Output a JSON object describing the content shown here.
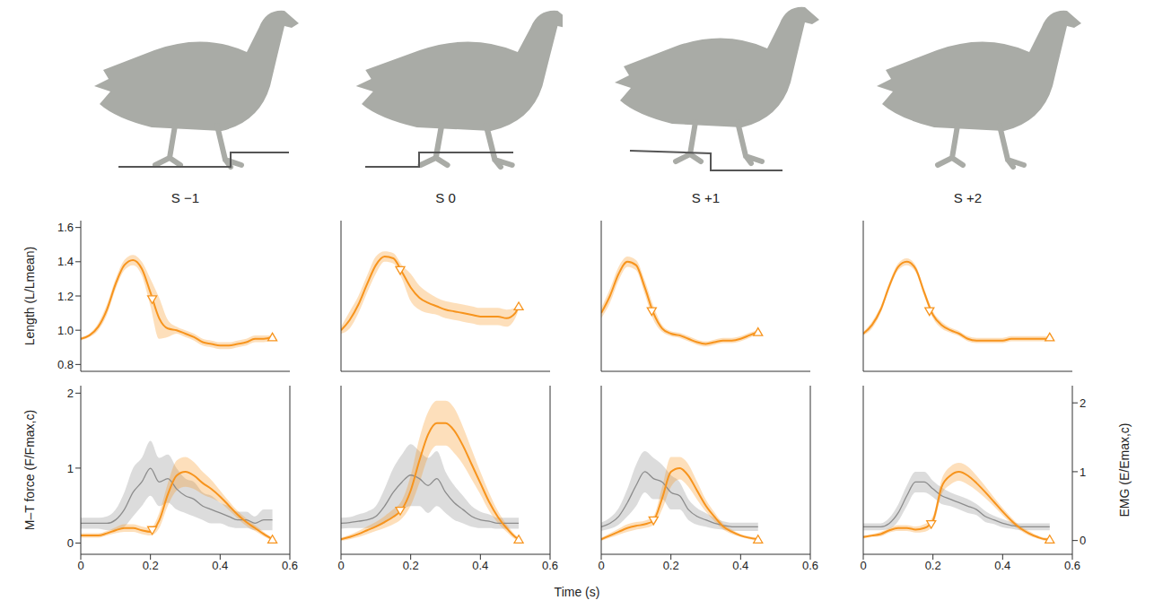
{
  "chart_data": [
    {
      "type": "line",
      "title": "S −1",
      "ylabel": "Length (L/Lmean)",
      "xlim": [
        0,
        0.6
      ],
      "ylim": [
        0.76,
        1.64
      ],
      "yticks": [
        0.8,
        {
          "value": 1,
          "label": "1.0"
        },
        1.2,
        1.4,
        1.6
      ],
      "x": [
        0,
        0.025,
        0.05,
        0.075,
        0.1,
        0.125,
        0.15,
        0.175,
        0.2,
        0.225,
        0.25,
        0.275,
        0.3,
        0.325,
        0.35,
        0.375,
        0.4,
        0.425,
        0.45,
        0.475,
        0.5,
        0.525,
        0.55
      ],
      "series": [
        {
          "type": "line",
          "color": "#f7941d",
          "values": [
            0.95,
            0.97,
            1.02,
            1.12,
            1.27,
            1.38,
            1.41,
            1.36,
            1.22,
            1.07,
            1.01,
            1.0,
            0.98,
            0.96,
            0.93,
            0.92,
            0.91,
            0.91,
            0.92,
            0.93,
            0.95,
            0.95,
            0.96
          ],
          "error": [
            0.01,
            0.01,
            0.02,
            0.03,
            0.03,
            0.03,
            0.03,
            0.04,
            0.08,
            0.12,
            0.05,
            0.02,
            0.02,
            0.02,
            0.02,
            0.02,
            0.02,
            0.02,
            0.02,
            0.02,
            0.02,
            0.02,
            0.01
          ]
        },
        {
          "type": "scatter",
          "marker": "triangle-down",
          "color": "#f7941d",
          "x": [
            0.205
          ],
          "values": [
            1.18
          ]
        },
        {
          "type": "scatter",
          "marker": "triangle-up",
          "color": "#f7941d",
          "x": [
            0.55
          ],
          "values": [
            0.96
          ]
        }
      ]
    },
    {
      "type": "line",
      "title": "S 0",
      "xlim": [
        0,
        0.6
      ],
      "ylim": [
        0.76,
        1.64
      ],
      "x": [
        0,
        0.025,
        0.05,
        0.075,
        0.1,
        0.125,
        0.15,
        0.175,
        0.2,
        0.225,
        0.25,
        0.275,
        0.3,
        0.325,
        0.35,
        0.375,
        0.4,
        0.425,
        0.45,
        0.475,
        0.5,
        0.51
      ],
      "series": [
        {
          "type": "line",
          "color": "#f7941d",
          "values": [
            1.0,
            1.06,
            1.15,
            1.27,
            1.38,
            1.43,
            1.42,
            1.34,
            1.25,
            1.19,
            1.16,
            1.14,
            1.12,
            1.11,
            1.1,
            1.09,
            1.08,
            1.08,
            1.08,
            1.07,
            1.1,
            1.14
          ],
          "error": [
            0.02,
            0.05,
            0.05,
            0.05,
            0.05,
            0.03,
            0.03,
            0.04,
            0.08,
            0.07,
            0.06,
            0.05,
            0.05,
            0.05,
            0.05,
            0.05,
            0.05,
            0.05,
            0.05,
            0.05,
            0.03,
            0.02
          ]
        },
        {
          "type": "scatter",
          "marker": "triangle-down",
          "color": "#f7941d",
          "x": [
            0.17
          ],
          "values": [
            1.35
          ]
        },
        {
          "type": "scatter",
          "marker": "triangle-up",
          "color": "#f7941d",
          "x": [
            0.51
          ],
          "values": [
            1.14
          ]
        }
      ]
    },
    {
      "type": "line",
      "title": "S +1",
      "xlim": [
        0,
        0.6
      ],
      "ylim": [
        0.76,
        1.64
      ],
      "x": [
        0,
        0.025,
        0.05,
        0.075,
        0.1,
        0.125,
        0.15,
        0.175,
        0.2,
        0.225,
        0.25,
        0.275,
        0.3,
        0.325,
        0.35,
        0.375,
        0.4,
        0.425,
        0.45
      ],
      "series": [
        {
          "type": "line",
          "color": "#f7941d",
          "values": [
            1.1,
            1.2,
            1.33,
            1.4,
            1.38,
            1.25,
            1.1,
            1.01,
            0.98,
            0.97,
            0.95,
            0.93,
            0.92,
            0.93,
            0.94,
            0.94,
            0.95,
            0.97,
            0.99
          ],
          "error": [
            0.03,
            0.04,
            0.04,
            0.03,
            0.03,
            0.04,
            0.04,
            0.02,
            0.015,
            0.015,
            0.015,
            0.015,
            0.015,
            0.015,
            0.015,
            0.015,
            0.015,
            0.015,
            0.01
          ]
        },
        {
          "type": "scatter",
          "marker": "triangle-down",
          "color": "#f7941d",
          "x": [
            0.145
          ],
          "values": [
            1.11
          ]
        },
        {
          "type": "scatter",
          "marker": "triangle-up",
          "color": "#f7941d",
          "x": [
            0.45
          ],
          "values": [
            0.99
          ]
        }
      ]
    },
    {
      "type": "line",
      "title": "S +2",
      "xlim": [
        0,
        0.6
      ],
      "ylim": [
        0.76,
        1.64
      ],
      "x": [
        0,
        0.025,
        0.05,
        0.075,
        0.1,
        0.125,
        0.15,
        0.175,
        0.2,
        0.225,
        0.25,
        0.275,
        0.3,
        0.325,
        0.35,
        0.375,
        0.4,
        0.425,
        0.45,
        0.475,
        0.5,
        0.525,
        0.535
      ],
      "series": [
        {
          "type": "line",
          "color": "#f7941d",
          "values": [
            0.98,
            1.03,
            1.12,
            1.26,
            1.37,
            1.4,
            1.36,
            1.22,
            1.09,
            1.03,
            1.0,
            0.98,
            0.95,
            0.94,
            0.94,
            0.94,
            0.94,
            0.95,
            0.95,
            0.95,
            0.95,
            0.95,
            0.96
          ],
          "error": [
            0.01,
            0.02,
            0.02,
            0.02,
            0.02,
            0.02,
            0.02,
            0.02,
            0.02,
            0.02,
            0.015,
            0.015,
            0.015,
            0.015,
            0.015,
            0.015,
            0.015,
            0.015,
            0.015,
            0.015,
            0.015,
            0.015,
            0.01
          ]
        },
        {
          "type": "scatter",
          "marker": "triangle-down",
          "color": "#f7941d",
          "x": [
            0.19
          ],
          "values": [
            1.11
          ]
        },
        {
          "type": "scatter",
          "marker": "triangle-up",
          "color": "#f7941d",
          "x": [
            0.535
          ],
          "values": [
            0.96
          ]
        }
      ]
    },
    {
      "type": "line",
      "ylabel": "M–T force (F/Fmax,c)",
      "xlim": [
        0,
        0.6
      ],
      "xticks": [
        0,
        0.2,
        0.4,
        0.6
      ],
      "ylim": [
        -0.15,
        2.1
      ],
      "yticks": [
        0,
        1,
        2
      ],
      "y2lim": [
        -0.2,
        2.25
      ],
      "x": [
        0,
        0.025,
        0.05,
        0.075,
        0.1,
        0.125,
        0.15,
        0.175,
        0.2,
        0.225,
        0.25,
        0.275,
        0.3,
        0.325,
        0.35,
        0.375,
        0.4,
        0.425,
        0.45,
        0.475,
        0.5,
        0.525,
        0.55
      ],
      "series": [
        {
          "type": "line",
          "axis": "y2",
          "color": "#8c8c8c",
          "values": [
            0.25,
            0.25,
            0.25,
            0.25,
            0.3,
            0.45,
            0.7,
            0.85,
            1.05,
            0.85,
            0.9,
            0.75,
            0.65,
            0.6,
            0.5,
            0.45,
            0.4,
            0.35,
            0.3,
            0.3,
            0.25,
            0.3,
            0.3
          ],
          "error": [
            0.08,
            0.08,
            0.08,
            0.1,
            0.15,
            0.25,
            0.35,
            0.35,
            0.4,
            0.35,
            0.35,
            0.3,
            0.25,
            0.25,
            0.2,
            0.2,
            0.15,
            0.15,
            0.12,
            0.12,
            0.1,
            0.15,
            0.15
          ]
        },
        {
          "type": "line",
          "color": "#f7941d",
          "values": [
            0.1,
            0.1,
            0.1,
            0.13,
            0.17,
            0.2,
            0.2,
            0.17,
            0.15,
            0.3,
            0.65,
            0.9,
            0.95,
            0.9,
            0.8,
            0.72,
            0.62,
            0.5,
            0.38,
            0.28,
            0.2,
            0.12,
            0.05
          ],
          "error": [
            0.03,
            0.03,
            0.03,
            0.03,
            0.04,
            0.05,
            0.05,
            0.05,
            0.05,
            0.1,
            0.15,
            0.2,
            0.2,
            0.18,
            0.15,
            0.12,
            0.08,
            0.06,
            0.05,
            0.05,
            0.04,
            0.03,
            0.02
          ]
        },
        {
          "type": "scatter",
          "marker": "triangle-down",
          "color": "#f7941d",
          "x": [
            0.205
          ],
          "values": [
            0.17
          ]
        },
        {
          "type": "scatter",
          "marker": "triangle-up",
          "color": "#f7941d",
          "x": [
            0.55
          ],
          "values": [
            0.05
          ]
        }
      ]
    },
    {
      "type": "line",
      "xlim": [
        0,
        0.6
      ],
      "xticks": [
        0,
        0.2,
        0.4,
        0.6
      ],
      "ylim": [
        -0.15,
        2.1
      ],
      "y2lim": [
        -0.2,
        2.25
      ],
      "x": [
        0,
        0.025,
        0.05,
        0.075,
        0.1,
        0.125,
        0.15,
        0.175,
        0.2,
        0.225,
        0.25,
        0.275,
        0.3,
        0.325,
        0.35,
        0.375,
        0.4,
        0.425,
        0.45,
        0.475,
        0.5,
        0.51
      ],
      "series": [
        {
          "type": "line",
          "axis": "y2",
          "color": "#8c8c8c",
          "values": [
            0.25,
            0.26,
            0.28,
            0.3,
            0.35,
            0.5,
            0.7,
            0.85,
            0.95,
            0.9,
            0.8,
            0.9,
            0.7,
            0.55,
            0.45,
            0.35,
            0.3,
            0.28,
            0.25,
            0.25,
            0.25,
            0.25
          ],
          "error": [
            0.08,
            0.08,
            0.1,
            0.12,
            0.15,
            0.25,
            0.35,
            0.4,
            0.45,
            0.4,
            0.4,
            0.4,
            0.3,
            0.25,
            0.2,
            0.15,
            0.12,
            0.1,
            0.08,
            0.08,
            0.08,
            0.08
          ]
        },
        {
          "type": "line",
          "color": "#f7941d",
          "values": [
            0.05,
            0.08,
            0.12,
            0.17,
            0.22,
            0.28,
            0.35,
            0.45,
            0.7,
            1.1,
            1.45,
            1.6,
            1.6,
            1.5,
            1.3,
            1.05,
            0.8,
            0.55,
            0.35,
            0.2,
            0.08,
            0.05
          ],
          "error": [
            0.02,
            0.03,
            0.04,
            0.05,
            0.06,
            0.08,
            0.1,
            0.12,
            0.2,
            0.3,
            0.3,
            0.3,
            0.3,
            0.3,
            0.25,
            0.2,
            0.15,
            0.12,
            0.08,
            0.05,
            0.03,
            0.02
          ]
        },
        {
          "type": "scatter",
          "marker": "triangle-down",
          "color": "#f7941d",
          "x": [
            0.17
          ],
          "values": [
            0.43
          ]
        },
        {
          "type": "scatter",
          "marker": "triangle-up",
          "color": "#f7941d",
          "x": [
            0.51
          ],
          "values": [
            0.05
          ]
        }
      ]
    },
    {
      "type": "line",
      "xlim": [
        0,
        0.6
      ],
      "xticks": [
        0,
        0.2,
        0.4,
        0.6
      ],
      "ylim": [
        -0.15,
        2.1
      ],
      "y2lim": [
        -0.2,
        2.25
      ],
      "x": [
        0,
        0.025,
        0.05,
        0.075,
        0.1,
        0.125,
        0.15,
        0.175,
        0.2,
        0.225,
        0.25,
        0.275,
        0.3,
        0.325,
        0.35,
        0.375,
        0.4,
        0.425,
        0.45
      ],
      "series": [
        {
          "type": "line",
          "axis": "y2",
          "color": "#8c8c8c",
          "values": [
            0.2,
            0.25,
            0.35,
            0.55,
            0.8,
            1.0,
            0.9,
            0.85,
            0.7,
            0.65,
            0.45,
            0.35,
            0.3,
            0.25,
            0.22,
            0.2,
            0.2,
            0.2,
            0.2
          ],
          "error": [
            0.06,
            0.08,
            0.12,
            0.2,
            0.3,
            0.3,
            0.3,
            0.25,
            0.25,
            0.2,
            0.15,
            0.12,
            0.1,
            0.08,
            0.06,
            0.06,
            0.06,
            0.06,
            0.06
          ]
        },
        {
          "type": "line",
          "color": "#f7941d",
          "values": [
            0.05,
            0.1,
            0.15,
            0.2,
            0.23,
            0.25,
            0.3,
            0.6,
            0.95,
            1.0,
            0.9,
            0.7,
            0.5,
            0.35,
            0.22,
            0.15,
            0.1,
            0.07,
            0.05
          ],
          "error": [
            0.02,
            0.03,
            0.04,
            0.05,
            0.05,
            0.05,
            0.06,
            0.15,
            0.2,
            0.15,
            0.15,
            0.12,
            0.08,
            0.06,
            0.04,
            0.03,
            0.02,
            0.02,
            0.02
          ]
        },
        {
          "type": "scatter",
          "marker": "triangle-down",
          "color": "#f7941d",
          "x": [
            0.15
          ],
          "values": [
            0.3
          ]
        },
        {
          "type": "scatter",
          "marker": "triangle-up",
          "color": "#f7941d",
          "x": [
            0.45
          ],
          "values": [
            0.05
          ]
        }
      ]
    },
    {
      "type": "line",
      "y2label": "EMG (E/Emax,c)",
      "xlim": [
        0,
        0.6
      ],
      "xticks": [
        0,
        0.2,
        0.4,
        0.6
      ],
      "ylim": [
        -0.15,
        2.1
      ],
      "y2lim": [
        -0.2,
        2.25
      ],
      "y2ticks": [
        0,
        1,
        2
      ],
      "x": [
        0,
        0.025,
        0.05,
        0.075,
        0.1,
        0.125,
        0.15,
        0.175,
        0.2,
        0.225,
        0.25,
        0.275,
        0.3,
        0.325,
        0.35,
        0.375,
        0.4,
        0.425,
        0.45,
        0.475,
        0.5,
        0.525,
        0.535
      ],
      "series": [
        {
          "type": "line",
          "axis": "y2",
          "color": "#8c8c8c",
          "values": [
            0.2,
            0.2,
            0.2,
            0.25,
            0.4,
            0.65,
            0.85,
            0.85,
            0.75,
            0.65,
            0.6,
            0.55,
            0.5,
            0.45,
            0.35,
            0.3,
            0.25,
            0.22,
            0.2,
            0.2,
            0.2,
            0.2,
            0.2
          ],
          "error": [
            0.05,
            0.05,
            0.05,
            0.08,
            0.12,
            0.15,
            0.15,
            0.15,
            0.12,
            0.12,
            0.1,
            0.1,
            0.1,
            0.08,
            0.08,
            0.06,
            0.06,
            0.05,
            0.05,
            0.05,
            0.05,
            0.05,
            0.05
          ]
        },
        {
          "type": "line",
          "color": "#f7941d",
          "values": [
            0.08,
            0.1,
            0.12,
            0.17,
            0.2,
            0.2,
            0.18,
            0.2,
            0.3,
            0.75,
            0.9,
            0.95,
            0.9,
            0.8,
            0.68,
            0.55,
            0.42,
            0.3,
            0.2,
            0.13,
            0.08,
            0.05,
            0.05
          ],
          "error": [
            0.02,
            0.02,
            0.03,
            0.03,
            0.04,
            0.04,
            0.04,
            0.05,
            0.06,
            0.1,
            0.12,
            0.12,
            0.12,
            0.1,
            0.08,
            0.06,
            0.05,
            0.04,
            0.03,
            0.03,
            0.02,
            0.02,
            0.02
          ]
        },
        {
          "type": "scatter",
          "marker": "triangle-down",
          "color": "#f7941d",
          "x": [
            0.195
          ],
          "values": [
            0.25
          ]
        },
        {
          "type": "scatter",
          "marker": "triangle-up",
          "color": "#f7941d",
          "x": [
            0.535
          ],
          "values": [
            0.05
          ]
        }
      ]
    }
  ],
  "xlabel": "Time (s)"
}
